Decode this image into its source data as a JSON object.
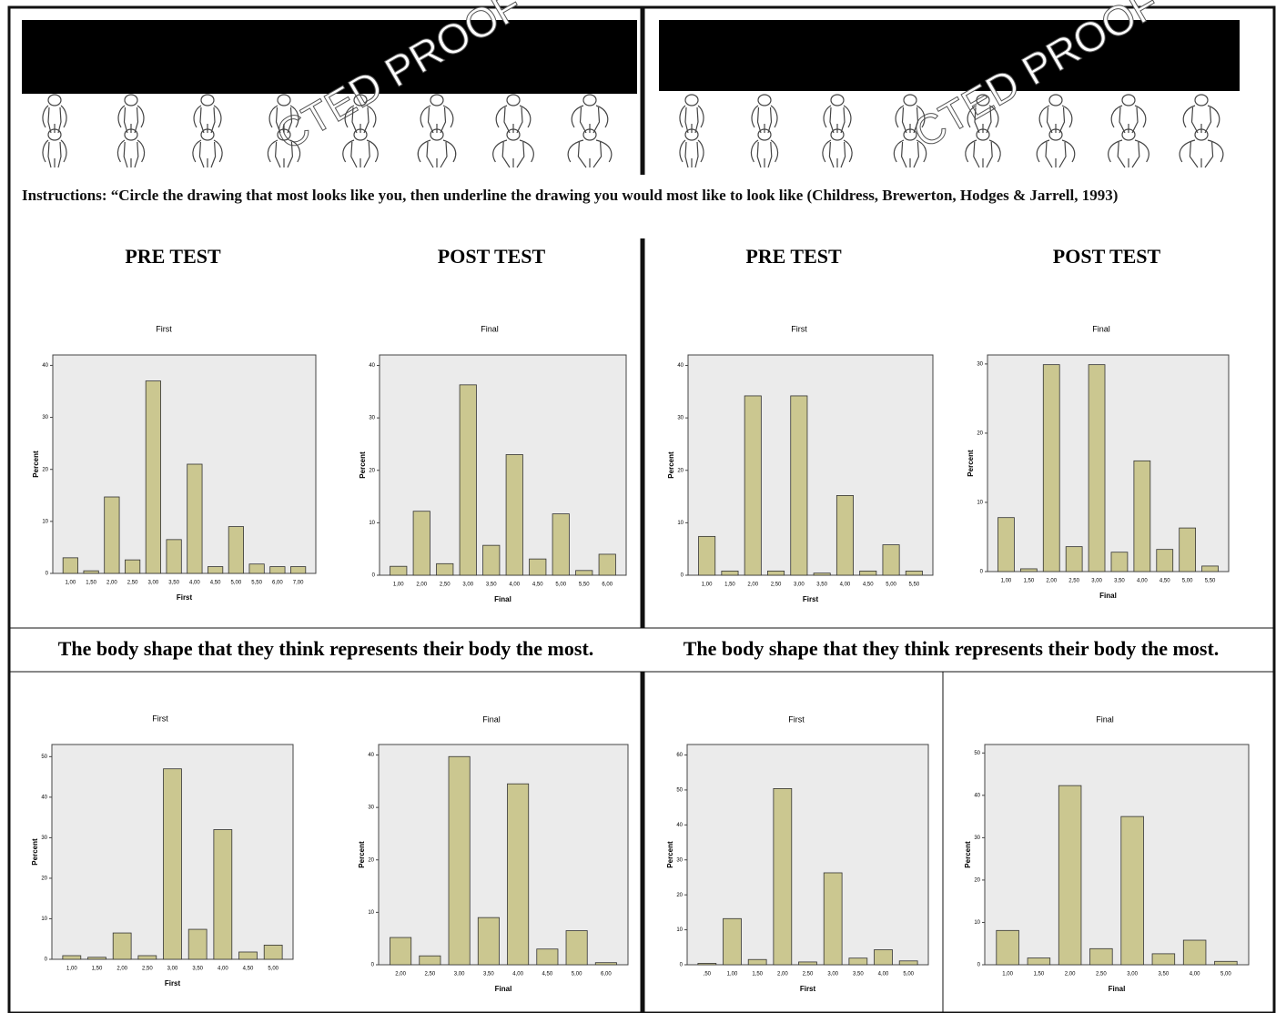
{
  "watermark": "CTED PROOF",
  "instructions": "Instructions: “Circle the drawing that most looks like you, then underline the drawing you would most like to look like (Childress, Brewerton, Hodges & Jarrell, 1993)",
  "headings": [
    "PRE TEST",
    "POST TEST",
    "PRE TEST",
    "POST TEST"
  ],
  "captions": [
    "The body shape that they think represents their body the most.",
    "The body shape that they think represents their body the most."
  ],
  "chart_data": [
    {
      "type": "bar",
      "title": "First",
      "x_label": "First",
      "y_label": "Percent",
      "color": "#cbc790",
      "categories": [
        "1,00",
        "1,50",
        "2,00",
        "2,50",
        "3,00",
        "3,50",
        "4,00",
        "4,50",
        "5,00",
        "5,50",
        "6,00",
        "7,00"
      ],
      "values": [
        3.0,
        0.5,
        14.7,
        2.6,
        37.0,
        6.5,
        21.0,
        1.3,
        9.0,
        1.8,
        1.3,
        1.3
      ],
      "ylim": [
        0,
        42
      ],
      "yticks": [
        0,
        10,
        20,
        30,
        40
      ]
    },
    {
      "type": "bar",
      "title": "Final",
      "x_label": "Final",
      "y_label": "Percent",
      "color": "#cbc790",
      "categories": [
        "1,00",
        "2,00",
        "2,50",
        "3,00",
        "3,50",
        "4,00",
        "4,50",
        "5,00",
        "5,50",
        "6,00"
      ],
      "values": [
        1.7,
        12.2,
        2.2,
        36.3,
        5.7,
        23.0,
        3.1,
        11.7,
        0.9,
        4.0
      ],
      "ylim": [
        0,
        42
      ],
      "yticks": [
        0,
        10,
        20,
        30,
        40
      ]
    },
    {
      "type": "bar",
      "title": "First",
      "x_label": "First",
      "y_label": "Percent",
      "color": "#cbc790",
      "categories": [
        "1,00",
        "1,50",
        "2,00",
        "2,50",
        "3,00",
        "3,50",
        "4,00",
        "4,50",
        "5,00",
        "5,50"
      ],
      "values": [
        7.4,
        0.8,
        34.2,
        0.8,
        34.2,
        0.4,
        15.2,
        0.8,
        5.8,
        0.8
      ],
      "ylim": [
        0,
        42
      ],
      "yticks": [
        0,
        10,
        20,
        30,
        40
      ]
    },
    {
      "type": "bar",
      "title": "Final",
      "x_label": "Final",
      "y_label": "Percent",
      "color": "#cbc790",
      "categories": [
        "1,00",
        "1,50",
        "2,00",
        "2,50",
        "3,00",
        "3,50",
        "4,00",
        "4,50",
        "5,00",
        "5,50"
      ],
      "values": [
        7.8,
        0.4,
        29.9,
        3.6,
        29.9,
        2.8,
        16.0,
        3.2,
        6.3,
        0.8
      ],
      "ylim": [
        0,
        31.3
      ],
      "yticks": [
        0,
        10,
        20,
        30
      ]
    },
    {
      "type": "bar",
      "title": "First",
      "x_label": "First",
      "y_label": "Percent",
      "color": "#cbc790",
      "categories": [
        "1,00",
        "1,50",
        "2,00",
        "2,50",
        "3,00",
        "3,50",
        "4,00",
        "4,50",
        "5,00"
      ],
      "values": [
        0.9,
        0.5,
        6.5,
        0.9,
        47.0,
        7.4,
        32.0,
        1.8,
        3.5
      ],
      "ylim": [
        0,
        53
      ],
      "yticks": [
        0,
        10,
        20,
        30,
        40,
        50
      ]
    },
    {
      "type": "bar",
      "title": "Final",
      "x_label": "Final",
      "y_label": "Percent",
      "color": "#cbc790",
      "categories": [
        "2,00",
        "2,50",
        "3,00",
        "3,50",
        "4,00",
        "4,50",
        "5,00",
        "6,00"
      ],
      "values": [
        5.2,
        1.7,
        39.7,
        9.0,
        34.5,
        3.0,
        6.5,
        0.4
      ],
      "ylim": [
        0,
        42
      ],
      "yticks": [
        0,
        10,
        20,
        30,
        40
      ]
    },
    {
      "type": "bar",
      "title": "First",
      "x_label": "First",
      "y_label": "Percent",
      "color": "#cbc790",
      "categories": [
        ",50",
        "1,00",
        "1,50",
        "2,00",
        "2,50",
        "3,00",
        "3,50",
        "4,00",
        "5,00"
      ],
      "values": [
        0.4,
        13.2,
        1.5,
        50.4,
        0.8,
        26.3,
        1.9,
        4.3,
        1.1
      ],
      "ylim": [
        0,
        63
      ],
      "yticks": [
        0,
        10,
        20,
        30,
        40,
        50,
        60
      ]
    },
    {
      "type": "bar",
      "title": "Final",
      "x_label": "Final",
      "y_label": "Percent",
      "color": "#cbc790",
      "categories": [
        "1,00",
        "1,50",
        "2,00",
        "2,50",
        "3,00",
        "3,50",
        "4,00",
        "5,00"
      ],
      "values": [
        8.1,
        1.6,
        42.3,
        3.8,
        35.0,
        2.6,
        5.8,
        0.8
      ],
      "ylim": [
        0,
        52
      ],
      "yticks": [
        0,
        10,
        20,
        30,
        40,
        50
      ]
    }
  ]
}
